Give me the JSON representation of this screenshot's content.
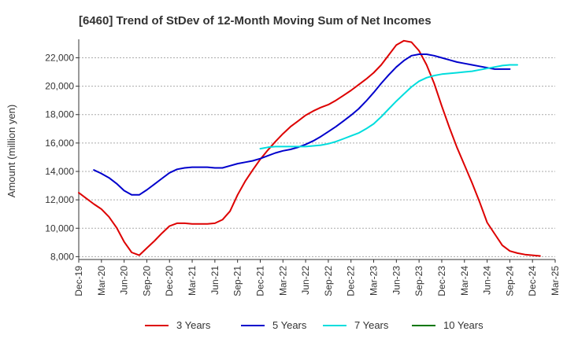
{
  "chart_data": {
    "type": "line",
    "title": "[6460]  Trend of StDev of 12-Month Moving Sum of Net Incomes",
    "xlabel": "",
    "ylabel": "Amount (million yen)",
    "ylim": [
      7800,
      23300
    ],
    "yticks": [
      8000,
      10000,
      12000,
      14000,
      16000,
      18000,
      20000,
      22000
    ],
    "ytick_labels": [
      "8,000",
      "10,000",
      "12,000",
      "14,000",
      "16,000",
      "18,000",
      "20,000",
      "22,000"
    ],
    "x_categories": [
      "Dec-19",
      "Mar-20",
      "Jun-20",
      "Sep-20",
      "Dec-20",
      "Mar-21",
      "Jun-21",
      "Sep-21",
      "Dec-21",
      "Mar-22",
      "Jun-22",
      "Sep-22",
      "Dec-22",
      "Mar-23",
      "Jun-23",
      "Sep-23",
      "Dec-23",
      "Mar-24",
      "Jun-24",
      "Sep-24",
      "Dec-24",
      "Mar-25"
    ],
    "grid": "horizontal",
    "legend_position": "bottom",
    "series": [
      {
        "name": "3 Years",
        "color": "#dd0000",
        "start_index": 0,
        "values": [
          12500,
          12100,
          11700,
          11350,
          10800,
          10050,
          9050,
          8300,
          8100,
          8600,
          9100,
          9650,
          10150,
          10350,
          10350,
          10300,
          10300,
          10300,
          10350,
          10600,
          11200,
          12350,
          13300,
          14100,
          14850,
          15500,
          16100,
          16650,
          17150,
          17550,
          17950,
          18250,
          18500,
          18700,
          19000,
          19350,
          19700,
          20100,
          20500,
          20950,
          21500,
          22200,
          22900,
          23200,
          23100,
          22500,
          21500,
          20200,
          18600,
          17100,
          15700,
          14450,
          13200,
          11850,
          10400,
          9600,
          8800,
          8400,
          8250,
          8150,
          8100,
          8050
        ]
      },
      {
        "name": "5 Years",
        "color": "#0000cc",
        "start_index": 2,
        "values": [
          14100,
          13850,
          13550,
          13150,
          12650,
          12350,
          12350,
          12700,
          13100,
          13500,
          13900,
          14150,
          14250,
          14300,
          14300,
          14300,
          14250,
          14250,
          14400,
          14550,
          14650,
          14750,
          14900,
          15100,
          15300,
          15450,
          15550,
          15700,
          15900,
          16150,
          16450,
          16800,
          17150,
          17550,
          17950,
          18400,
          18950,
          19550,
          20200,
          20800,
          21350,
          21800,
          22150,
          22250,
          22250,
          22150,
          22000,
          21850,
          21700,
          21600,
          21500,
          21400,
          21300,
          21200,
          21200,
          21200
        ]
      },
      {
        "name": "7 Years",
        "color": "#00dddd",
        "start_index": 24,
        "values": [
          15600,
          15700,
          15750,
          15750,
          15750,
          15750,
          15750,
          15800,
          15850,
          15950,
          16100,
          16300,
          16500,
          16700,
          17000,
          17350,
          17850,
          18400,
          18950,
          19450,
          19950,
          20350,
          20600,
          20750,
          20850,
          20900,
          20950,
          21000,
          21050,
          21150,
          21250,
          21350,
          21450,
          21500,
          21500
        ]
      },
      {
        "name": "10 Years",
        "color": "#007700",
        "start_index": 0,
        "values": []
      }
    ]
  }
}
